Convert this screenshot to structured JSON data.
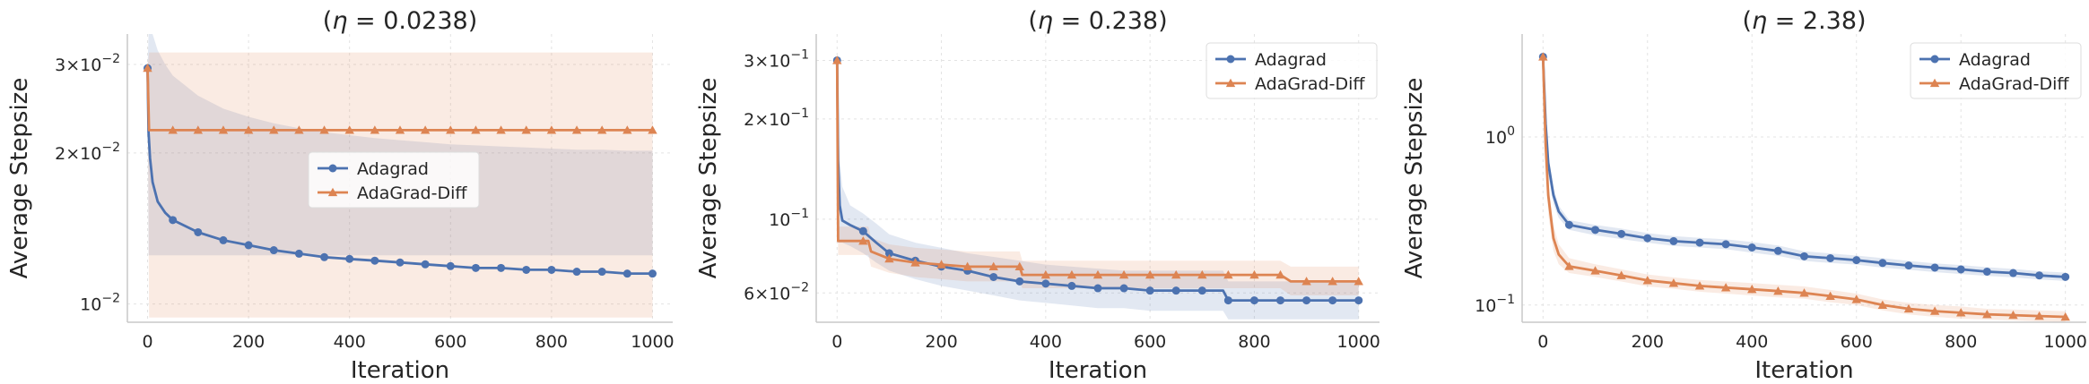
{
  "figure": {
    "series_names": [
      "Adagrad",
      "AdaGrad-Diff"
    ],
    "colors": {
      "Adagrad": "#4c72b0",
      "AdaGrad-Diff": "#dd8452"
    }
  },
  "chart_data": [
    {
      "type": "line",
      "title_prefix": "(",
      "title_symbol": "η",
      "title_value": " = 0.0238)",
      "xlabel": "Iteration",
      "ylabel": "Average Stepsize",
      "yscale": "log",
      "xlim": [
        -40,
        1040
      ],
      "ylim": [
        0.0092,
        0.0345
      ],
      "xticks": [
        0,
        200,
        400,
        600,
        800,
        1000
      ],
      "xtick_labels": [
        "0",
        "200",
        "400",
        "600",
        "800",
        "1000"
      ],
      "yticks": [
        0.03,
        0.02,
        0.01
      ],
      "ytick_labels": [
        {
          "base": "3×10",
          "exp": "−2"
        },
        {
          "base": "2×10",
          "exp": "−2"
        },
        {
          "base": "10",
          "exp": "−2"
        }
      ],
      "legend_position": "center",
      "series": [
        {
          "name": "Adagrad",
          "x": [
            0,
            2,
            5,
            10,
            20,
            35,
            50,
            100,
            150,
            200,
            250,
            300,
            350,
            400,
            450,
            500,
            550,
            600,
            650,
            700,
            750,
            800,
            850,
            900,
            950,
            1000
          ],
          "y": [
            0.0295,
            0.022,
            0.0195,
            0.0175,
            0.016,
            0.0152,
            0.0147,
            0.0139,
            0.0134,
            0.0131,
            0.0128,
            0.0126,
            0.0124,
            0.0123,
            0.0122,
            0.0121,
            0.012,
            0.0119,
            0.0118,
            0.0118,
            0.0117,
            0.0117,
            0.0116,
            0.0116,
            0.0115,
            0.0115
          ],
          "band_low": [
            0.0295,
            0.0125,
            0.0125,
            0.0125,
            0.0125,
            0.0125,
            0.0125,
            0.0125,
            0.0125,
            0.0125,
            0.0125,
            0.0125,
            0.0125,
            0.0125,
            0.0125,
            0.0125,
            0.0125,
            0.0125,
            0.0125,
            0.0125,
            0.0125,
            0.0125,
            0.0125,
            0.0125,
            0.0125,
            0.0125
          ],
          "band_high": [
            0.0295,
            0.0345,
            0.0345,
            0.0345,
            0.032,
            0.03,
            0.0285,
            0.026,
            0.0245,
            0.0236,
            0.0229,
            0.0224,
            0.022,
            0.0217,
            0.0214,
            0.0212,
            0.021,
            0.0208,
            0.0207,
            0.0206,
            0.0205,
            0.0204,
            0.0203,
            0.0203,
            0.0202,
            0.0202
          ]
        },
        {
          "name": "AdaGrad-Diff",
          "x": [
            0,
            3,
            10,
            1000
          ],
          "y": [
            0.0295,
            0.0222,
            0.0222,
            0.0222
          ],
          "band_low": [
            0.0295,
            0.0094,
            0.0094,
            0.0094
          ],
          "band_high": [
            0.0295,
            0.0317,
            0.0317,
            0.0317
          ]
        }
      ]
    },
    {
      "type": "line",
      "title_prefix": "(",
      "title_symbol": "η",
      "title_value": " = 0.238)",
      "xlabel": "Iteration",
      "ylabel": "Average Stepsize",
      "yscale": "log",
      "xlim": [
        -40,
        1040
      ],
      "ylim": [
        0.049,
        0.36
      ],
      "xticks": [
        0,
        200,
        400,
        600,
        800,
        1000
      ],
      "xtick_labels": [
        "0",
        "200",
        "400",
        "600",
        "800",
        "1000"
      ],
      "yticks": [
        0.3,
        0.2,
        0.1,
        0.06
      ],
      "ytick_labels": [
        {
          "base": "3×10",
          "exp": "−1"
        },
        {
          "base": "2×10",
          "exp": "−1"
        },
        {
          "base": "10",
          "exp": "−1"
        },
        {
          "base": "6×10",
          "exp": "−2"
        }
      ],
      "legend_position": "top-right",
      "series": [
        {
          "name": "Adagrad",
          "x": [
            0,
            2,
            5,
            10,
            25,
            50,
            75,
            100,
            150,
            200,
            250,
            300,
            350,
            400,
            450,
            500,
            550,
            600,
            650,
            700,
            740,
            750,
            800,
            850,
            900,
            950,
            1000
          ],
          "y": [
            0.3,
            0.15,
            0.11,
            0.099,
            0.096,
            0.092,
            0.085,
            0.079,
            0.075,
            0.072,
            0.07,
            0.067,
            0.065,
            0.064,
            0.063,
            0.062,
            0.062,
            0.061,
            0.061,
            0.061,
            0.061,
            0.057,
            0.057,
            0.057,
            0.057,
            0.057,
            0.057
          ],
          "band_low": [
            0.3,
            0.085,
            0.085,
            0.085,
            0.083,
            0.079,
            0.074,
            0.07,
            0.066,
            0.063,
            0.061,
            0.059,
            0.057,
            0.056,
            0.055,
            0.054,
            0.054,
            0.053,
            0.053,
            0.053,
            0.053,
            0.05,
            0.05,
            0.05,
            0.05,
            0.05,
            0.05
          ],
          "band_high": [
            0.3,
            0.2,
            0.15,
            0.125,
            0.11,
            0.104,
            0.097,
            0.09,
            0.085,
            0.082,
            0.079,
            0.077,
            0.075,
            0.073,
            0.072,
            0.071,
            0.07,
            0.07,
            0.07,
            0.07,
            0.07,
            0.065,
            0.065,
            0.065,
            0.065,
            0.065,
            0.065
          ]
        },
        {
          "name": "AdaGrad-Diff",
          "x": [
            0,
            2,
            5,
            60,
            65,
            100,
            150,
            200,
            250,
            300,
            350,
            355,
            500,
            700,
            850,
            870,
            900,
            950,
            1000
          ],
          "y": [
            0.3,
            0.086,
            0.086,
            0.086,
            0.08,
            0.076,
            0.074,
            0.073,
            0.072,
            0.072,
            0.072,
            0.068,
            0.068,
            0.068,
            0.068,
            0.065,
            0.065,
            0.065,
            0.065
          ],
          "band_low": [
            0.3,
            0.078,
            0.078,
            0.078,
            0.072,
            0.069,
            0.067,
            0.066,
            0.065,
            0.065,
            0.065,
            0.062,
            0.062,
            0.062,
            0.062,
            0.059,
            0.059,
            0.059,
            0.059
          ],
          "band_high": [
            0.3,
            0.095,
            0.095,
            0.095,
            0.088,
            0.084,
            0.082,
            0.081,
            0.08,
            0.08,
            0.08,
            0.075,
            0.075,
            0.075,
            0.075,
            0.072,
            0.072,
            0.072,
            0.072
          ]
        }
      ]
    },
    {
      "type": "line",
      "title_prefix": "(",
      "title_symbol": "η",
      "title_value": " = 2.38)",
      "xlabel": "Iteration",
      "ylabel": "Average Stepsize",
      "yscale": "log",
      "xlim": [
        -40,
        1040
      ],
      "ylim": [
        0.079,
        4.1
      ],
      "xticks": [
        0,
        200,
        400,
        600,
        800,
        1000
      ],
      "xtick_labels": [
        "0",
        "200",
        "400",
        "600",
        "800",
        "1000"
      ],
      "yticks": [
        1,
        0.1
      ],
      "ytick_labels": [
        {
          "base": "10",
          "exp": "0"
        },
        {
          "base": "10",
          "exp": "−1"
        }
      ],
      "legend_position": "top-right",
      "series": [
        {
          "name": "Adagrad",
          "x": [
            0,
            5,
            10,
            20,
            30,
            50,
            100,
            150,
            200,
            250,
            300,
            350,
            400,
            450,
            500,
            550,
            600,
            650,
            700,
            750,
            800,
            850,
            900,
            950,
            1000
          ],
          "y": [
            3,
            1.2,
            0.7,
            0.45,
            0.36,
            0.3,
            0.28,
            0.265,
            0.25,
            0.24,
            0.235,
            0.23,
            0.22,
            0.21,
            0.195,
            0.19,
            0.185,
            0.178,
            0.172,
            0.167,
            0.163,
            0.158,
            0.155,
            0.15,
            0.147
          ],
          "band_low": [
            3,
            1.0,
            0.6,
            0.4,
            0.33,
            0.28,
            0.26,
            0.247,
            0.235,
            0.225,
            0.22,
            0.215,
            0.205,
            0.196,
            0.183,
            0.178,
            0.174,
            0.167,
            0.162,
            0.157,
            0.153,
            0.149,
            0.146,
            0.142,
            0.139
          ],
          "band_high": [
            3,
            1.4,
            0.8,
            0.5,
            0.39,
            0.32,
            0.3,
            0.285,
            0.268,
            0.257,
            0.251,
            0.246,
            0.237,
            0.226,
            0.209,
            0.203,
            0.197,
            0.19,
            0.183,
            0.177,
            0.173,
            0.168,
            0.164,
            0.159,
            0.156
          ]
        },
        {
          "name": "AdaGrad-Diff",
          "x": [
            0,
            5,
            10,
            20,
            30,
            50,
            100,
            150,
            200,
            250,
            300,
            350,
            400,
            450,
            500,
            550,
            600,
            650,
            700,
            750,
            800,
            850,
            900,
            950,
            1000
          ],
          "y": [
            3,
            0.9,
            0.45,
            0.25,
            0.2,
            0.17,
            0.16,
            0.15,
            0.14,
            0.135,
            0.13,
            0.127,
            0.124,
            0.121,
            0.118,
            0.113,
            0.108,
            0.1,
            0.095,
            0.092,
            0.09,
            0.088,
            0.087,
            0.086,
            0.085
          ],
          "band_low": [
            3,
            0.7,
            0.35,
            0.21,
            0.175,
            0.155,
            0.147,
            0.138,
            0.129,
            0.125,
            0.12,
            0.117,
            0.114,
            0.111,
            0.109,
            0.104,
            0.1,
            0.093,
            0.088,
            0.085,
            0.083,
            0.082,
            0.081,
            0.08,
            0.079
          ],
          "band_high": [
            3,
            1.1,
            0.55,
            0.3,
            0.23,
            0.19,
            0.175,
            0.163,
            0.152,
            0.146,
            0.141,
            0.138,
            0.135,
            0.132,
            0.129,
            0.123,
            0.117,
            0.108,
            0.103,
            0.1,
            0.098,
            0.095,
            0.094,
            0.093,
            0.092
          ]
        }
      ]
    }
  ]
}
